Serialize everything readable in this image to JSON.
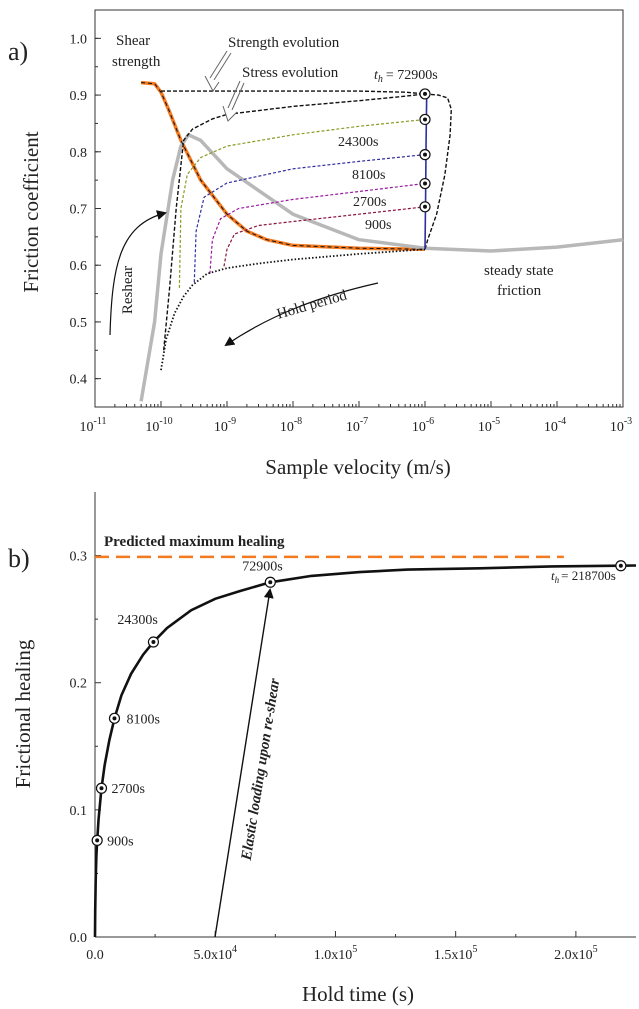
{
  "colors": {
    "orange": "#f47a20",
    "gray": "#b8b8b8",
    "black": "#111111",
    "olive": "#8a9a22",
    "navy": "#2e2ea0",
    "purple": "#9a1aa0",
    "maroon": "#8a1040"
  },
  "chart_data": [
    {
      "type": "line",
      "panel_label": "a)",
      "xlabel": "Sample velocity (m/s)",
      "ylabel": "Friction coefficient",
      "xscale": "log",
      "xlim": [
        1e-11,
        0.001
      ],
      "ylim": [
        0.35,
        1.05
      ],
      "x_ticks": [
        {
          "v": 1e-11,
          "base": "10",
          "exp": "-11"
        },
        {
          "v": 1e-10,
          "base": "10",
          "exp": "-10"
        },
        {
          "v": 1e-09,
          "base": "10",
          "exp": "-9"
        },
        {
          "v": 1e-08,
          "base": "10",
          "exp": "-8"
        },
        {
          "v": 1e-07,
          "base": "10",
          "exp": "-7"
        },
        {
          "v": 1e-06,
          "base": "10",
          "exp": "-6"
        },
        {
          "v": 1e-05,
          "base": "10",
          "exp": "-5"
        },
        {
          "v": 0.0001,
          "base": "10",
          "exp": "-4"
        },
        {
          "v": 0.001,
          "base": "10",
          "exp": "-3"
        }
      ],
      "y_ticks": [
        {
          "v": 0.4,
          "label": "0.4"
        },
        {
          "v": 0.5,
          "label": "0.5"
        },
        {
          "v": 0.6,
          "label": "0.6"
        },
        {
          "v": 0.7,
          "label": "0.7"
        },
        {
          "v": 0.8,
          "label": "0.8"
        },
        {
          "v": 0.9,
          "label": "0.9"
        },
        {
          "v": 1.0,
          "label": "1.0"
        }
      ],
      "series": [
        {
          "key": "shear-strength",
          "style": "orange-solid",
          "x": [
            5e-11,
            8e-11,
            1e-10,
            1.3e-10,
            2e-10,
            4e-10,
            1e-09,
            2e-09,
            4e-09,
            1e-08,
            1e-07,
            1e-06
          ],
          "y": [
            0.922,
            0.92,
            0.905,
            0.875,
            0.82,
            0.75,
            0.69,
            0.66,
            0.645,
            0.635,
            0.63,
            0.628
          ]
        },
        {
          "key": "steady-state-friction",
          "style": "gray-solid",
          "x": [
            5e-11,
            8e-11,
            1e-10,
            1.5e-10,
            2e-10,
            2.6e-10,
            4e-10,
            1e-09,
            1e-08,
            1e-07,
            1e-06,
            1e-05,
            0.0001,
            0.001
          ],
          "y": [
            0.36,
            0.5,
            0.62,
            0.75,
            0.81,
            0.83,
            0.82,
            0.77,
            0.69,
            0.645,
            0.63,
            0.625,
            0.632,
            0.645
          ]
        },
        {
          "key": "strength-evolution",
          "style": "black-dash",
          "x": [
            1e-10,
            1e-09,
            1e-08,
            1e-07,
            5e-07,
            1e-06,
            1.6e-06,
            2.2e-06,
            2.5e-06,
            2.4e-06,
            2e-06,
            1.5e-06,
            1.1e-06,
            1e-06
          ],
          "y": [
            0.907,
            0.907,
            0.907,
            0.907,
            0.905,
            0.902,
            0.9,
            0.895,
            0.875,
            0.83,
            0.76,
            0.69,
            0.645,
            0.628
          ]
        },
        {
          "key": "stress-evolution-72900",
          "style": "black-dash",
          "x": [
            1.1e-10,
            1.35e-10,
            1.7e-10,
            2.2e-10,
            3e-10,
            6e-10,
            1e-09,
            1e-08,
            1e-07,
            5e-07,
            1e-06
          ],
          "y": [
            0.45,
            0.56,
            0.7,
            0.82,
            0.84,
            0.858,
            0.866,
            0.88,
            0.89,
            0.898,
            0.902
          ]
        },
        {
          "key": "stress-evolution-24300",
          "style": "olive-dash",
          "x": [
            1.9e-10,
            2e-10,
            2.5e-10,
            4e-10,
            1e-09,
            1e-08,
            1e-07,
            1e-06
          ],
          "y": [
            0.56,
            0.7,
            0.76,
            0.79,
            0.81,
            0.83,
            0.845,
            0.857
          ]
        },
        {
          "key": "stress-evolution-8100",
          "style": "navy-dash",
          "x": [
            3.2e-10,
            3.4e-10,
            4.5e-10,
            1e-09,
            1e-08,
            1e-07,
            1e-06
          ],
          "y": [
            0.57,
            0.66,
            0.72,
            0.745,
            0.77,
            0.783,
            0.795
          ]
        },
        {
          "key": "stress-evolution-2700",
          "style": "purple-dash",
          "x": [
            5.5e-10,
            6e-10,
            8e-10,
            1.5e-09,
            1e-08,
            1e-07,
            1e-06
          ],
          "y": [
            0.585,
            0.645,
            0.682,
            0.7,
            0.716,
            0.73,
            0.744
          ]
        },
        {
          "key": "stress-evolution-900",
          "style": "maroon-dash",
          "x": [
            9e-10,
            1e-09,
            1.3e-09,
            3e-09,
            1e-08,
            1e-07,
            1e-06
          ],
          "y": [
            0.598,
            0.628,
            0.655,
            0.67,
            0.677,
            0.69,
            0.703
          ]
        },
        {
          "key": "reload-envelope",
          "style": "black-dot",
          "x": [
            1e-10,
            1.2e-10,
            1.6e-10,
            2.2e-10,
            3e-10,
            5e-10,
            1e-09,
            3e-09,
            1e-08,
            1e-07,
            1e-06
          ],
          "y": [
            0.415,
            0.47,
            0.515,
            0.545,
            0.565,
            0.585,
            0.595,
            0.603,
            0.61,
            0.62,
            0.628
          ]
        },
        {
          "key": "hold-return",
          "style": "navy-solid",
          "x": [
            1e-06,
            1.02e-06,
            1.04e-06,
            1.06e-06
          ],
          "y": [
            0.628,
            0.72,
            0.82,
            0.9
          ]
        }
      ],
      "markers": [
        {
          "x": 1e-06,
          "y": 0.902
        },
        {
          "x": 1e-06,
          "y": 0.857
        },
        {
          "x": 1e-06,
          "y": 0.795
        },
        {
          "x": 1e-06,
          "y": 0.744
        },
        {
          "x": 1e-06,
          "y": 0.703
        }
      ],
      "annotations": {
        "shear_strength": [
          "Shear",
          "strength"
        ],
        "strength_evolution": "Strength evolution",
        "stress_evolution": "Stress evolution",
        "th_symbol": "t",
        "th_sub": "h",
        "th_value": "=  72900s",
        "hold_24300": "24300s",
        "hold_8100": "8100s",
        "hold_2700": "2700s",
        "hold_900": "900s",
        "steady_state": [
          "steady  state",
          "friction"
        ],
        "reshear": "Reshear",
        "hold_period": "Hold period"
      }
    },
    {
      "type": "line",
      "panel_label": "b)",
      "xlabel": "Hold time (s)",
      "ylabel": "Frictional healing",
      "xlim": [
        0,
        225000
      ],
      "ylim": [
        0,
        0.35
      ],
      "x_ticks": [
        {
          "v": 0,
          "label": "0.0"
        },
        {
          "v": 50000,
          "mant": "5.0x10",
          "exp": "4"
        },
        {
          "v": 100000,
          "mant": "1.0x10",
          "exp": "5"
        },
        {
          "v": 150000,
          "mant": "1.5x10",
          "exp": "5"
        },
        {
          "v": 200000,
          "mant": "2.0x10",
          "exp": "5"
        }
      ],
      "y_ticks": [
        {
          "v": 0,
          "label": "0.0"
        },
        {
          "v": 0.1,
          "label": "0.1"
        },
        {
          "v": 0.2,
          "label": "0.2"
        },
        {
          "v": 0.3,
          "label": "0.3"
        }
      ],
      "predicted_max": 0.299,
      "predicted_max_xrange": [
        0,
        195000
      ],
      "predicted_max_label": "Predicted maximum healing",
      "curve": {
        "x": [
          0,
          100,
          300,
          600,
          900,
          1500,
          2700,
          4000,
          6000,
          8100,
          11000,
          15000,
          20000,
          24300,
          30000,
          40000,
          50000,
          60000,
          72900,
          90000,
          110000,
          130000,
          160000,
          190000,
          218700,
          225000
        ],
        "y": [
          0,
          0.02,
          0.045,
          0.064,
          0.076,
          0.093,
          0.117,
          0.135,
          0.155,
          0.172,
          0.19,
          0.207,
          0.222,
          0.232,
          0.243,
          0.257,
          0.266,
          0.272,
          0.279,
          0.284,
          0.287,
          0.289,
          0.29,
          0.2915,
          0.292,
          0.2922
        ]
      },
      "points": [
        {
          "x": 900,
          "y": 0.076,
          "label": "900s"
        },
        {
          "x": 2700,
          "y": 0.117,
          "label": "2700s"
        },
        {
          "x": 8100,
          "y": 0.172,
          "label": "8100s"
        },
        {
          "x": 24300,
          "y": 0.232,
          "label": "24300s"
        },
        {
          "x": 72900,
          "y": 0.279,
          "label": "72900s"
        },
        {
          "x": 218700,
          "y": 0.292,
          "label": ""
        }
      ],
      "th_symbol": "t",
      "th_sub": "h",
      "th_value": "= 218700s",
      "arrow_label": "Elastic  loading upon re-shear"
    }
  ]
}
